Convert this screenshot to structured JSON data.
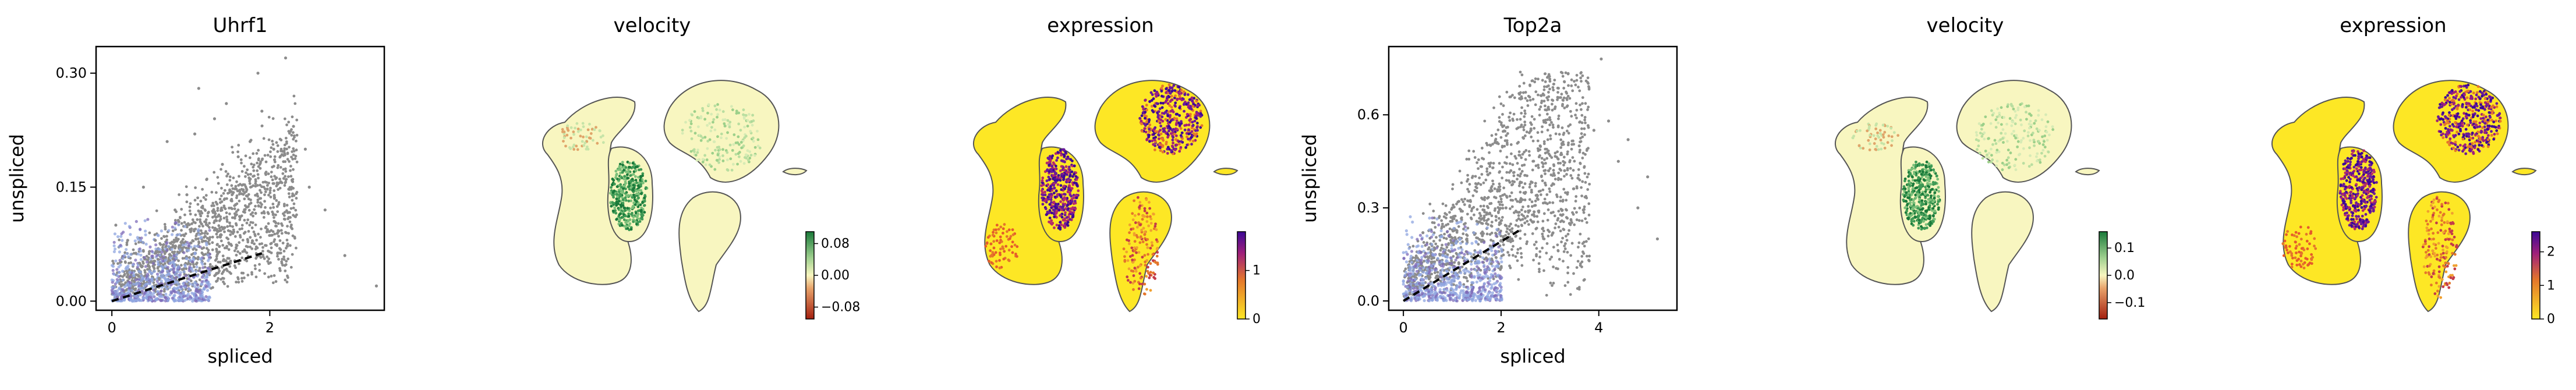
{
  "colors": {
    "scatter_points": "#8c8c8c",
    "density_blue": "#8fa6e0",
    "density_purple": "#7d6bb8",
    "fit_line": "#000000",
    "velocity_negative": "#a41f0f",
    "velocity_neutral": "#f8f6c0",
    "velocity_positive": "#1a7a3a",
    "expression_low": "#fde725",
    "expression_mid": "#e4762b",
    "expression_high": "#3c0896"
  },
  "icons": [
    "umap-embedding-blob"
  ],
  "chart_data": [
    {
      "type": "scatter",
      "title": "Uhrf1",
      "xlabel": "spliced",
      "ylabel": "unspliced",
      "xlim": [
        -0.2,
        3.45
      ],
      "ylim": [
        -0.012,
        0.335
      ],
      "xticks": [
        0,
        2
      ],
      "xtick_labels": [
        "0",
        "2"
      ],
      "yticks": [
        0.0,
        0.15,
        0.3
      ],
      "ytick_labels": [
        "0.00",
        "0.15",
        "0.30"
      ],
      "grid": false,
      "fit_line": {
        "style": "dashed",
        "x": [
          0,
          1.9
        ],
        "y": [
          0.0,
          0.063
        ]
      },
      "series": [
        {
          "values": [
            [
              0.12,
              0.02
            ],
            [
              0.35,
              0.05
            ],
            [
              0.55,
              0.08
            ],
            [
              0.8,
              0.12
            ],
            [
              0.95,
              0.14
            ],
            [
              1.2,
              0.16
            ],
            [
              1.4,
              0.18
            ],
            [
              1.6,
              0.19
            ],
            [
              1.75,
              0.21
            ],
            [
              1.05,
              0.22
            ],
            [
              1.3,
              0.24
            ],
            [
              1.45,
              0.26
            ],
            [
              1.1,
              0.28
            ],
            [
              1.85,
              0.3
            ],
            [
              1.9,
              0.25
            ],
            [
              2.2,
              0.32
            ],
            [
              2.05,
              0.2
            ],
            [
              2.45,
              0.2
            ],
            [
              2.3,
              0.23
            ],
            [
              2.7,
              0.12
            ],
            [
              3.35,
              0.02
            ],
            [
              2.95,
              0.06
            ],
            [
              0.2,
              0.08
            ],
            [
              0.05,
              0.1
            ],
            [
              0.6,
              0.03
            ],
            [
              1.5,
              0.05
            ],
            [
              2.1,
              0.09
            ],
            [
              2.5,
              0.15
            ],
            [
              0.7,
              0.21
            ],
            [
              0.4,
              0.15
            ]
          ]
        }
      ]
    },
    {
      "type": "heatmap",
      "title": "velocity",
      "colorbar": {
        "ticks": [
          -0.08,
          0.0,
          0.08
        ],
        "tick_labels": [
          "−0.08",
          "0.00",
          "0.08"
        ],
        "range": [
          -0.11,
          0.11
        ]
      }
    },
    {
      "type": "heatmap",
      "title": "expression",
      "colorbar": {
        "ticks": [
          0,
          1
        ],
        "tick_labels": [
          "0",
          "1"
        ],
        "range": [
          0,
          1.8
        ]
      }
    },
    {
      "type": "scatter",
      "title": "Top2a",
      "xlabel": "spliced",
      "ylabel": "unspliced",
      "xlim": [
        -0.3,
        5.6
      ],
      "ylim": [
        -0.03,
        0.82
      ],
      "xticks": [
        0,
        2,
        4
      ],
      "xtick_labels": [
        "0",
        "2",
        "4"
      ],
      "yticks": [
        0.0,
        0.3,
        0.6
      ],
      "ytick_labels": [
        "0.0",
        "0.3",
        "0.6"
      ],
      "grid": false,
      "fit_line": {
        "style": "dashed",
        "x": [
          0,
          2.4
        ],
        "y": [
          0.0,
          0.23
        ]
      },
      "series": [
        {
          "values": [
            [
              0.2,
              0.05
            ],
            [
              0.5,
              0.08
            ],
            [
              0.9,
              0.12
            ],
            [
              1.3,
              0.2
            ],
            [
              1.7,
              0.25
            ],
            [
              2.1,
              0.3
            ],
            [
              2.5,
              0.35
            ],
            [
              2.9,
              0.38
            ],
            [
              3.3,
              0.42
            ],
            [
              3.6,
              0.5
            ],
            [
              3.9,
              0.55
            ],
            [
              4.2,
              0.58
            ],
            [
              4.6,
              0.52
            ],
            [
              5.0,
              0.4
            ],
            [
              3.1,
              0.62
            ],
            [
              2.8,
              0.5
            ],
            [
              4.4,
              0.45
            ],
            [
              2.2,
              0.42
            ],
            [
              4.05,
              0.78
            ],
            [
              1.0,
              0.3
            ],
            [
              0.4,
              0.22
            ],
            [
              1.8,
              0.12
            ],
            [
              3.4,
              0.25
            ],
            [
              4.8,
              0.3
            ],
            [
              5.2,
              0.2
            ]
          ]
        }
      ]
    },
    {
      "type": "heatmap",
      "title": "velocity",
      "colorbar": {
        "ticks": [
          -0.1,
          0.0,
          0.1
        ],
        "tick_labels": [
          "−0.1",
          "0.0",
          "0.1"
        ],
        "range": [
          -0.16,
          0.16
        ]
      }
    },
    {
      "type": "heatmap",
      "title": "expression",
      "colorbar": {
        "ticks": [
          0,
          1,
          2
        ],
        "tick_labels": [
          "0",
          "1",
          "2"
        ],
        "range": [
          0,
          2.6
        ]
      }
    }
  ]
}
